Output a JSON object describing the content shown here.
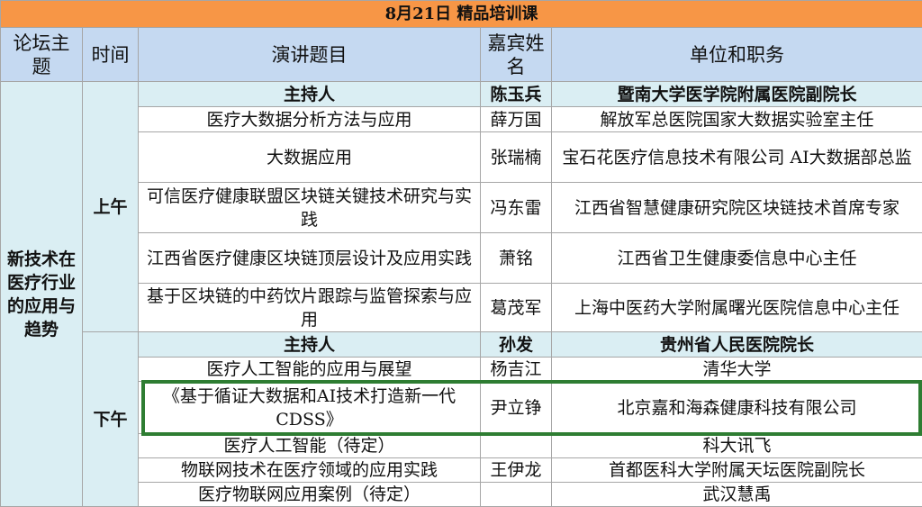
{
  "title": "8月21日  精品培训课",
  "headers": {
    "topic": "论坛主题",
    "time": "时间",
    "talk": "演讲题目",
    "speaker": "嘉宾姓名",
    "org": "单位和职务"
  },
  "topic": "新技术在医疗行业的应用与趋势",
  "morning": {
    "label": "上午",
    "host": {
      "label": "主持人",
      "name": "陈玉兵",
      "org": "暨南大学医学院附属医院副院长"
    },
    "rows": [
      {
        "talk": "医疗大数据分析方法与应用",
        "speaker": "薛万国",
        "org": "解放军总医院国家大数据实验室主任"
      },
      {
        "talk": "大数据应用",
        "speaker": "张瑞楠",
        "org": "宝石花医疗信息技术有限公司 AI大数据部总监"
      },
      {
        "talk": "可信医疗健康联盟区块链关键技术研究与实践",
        "speaker": "冯东雷",
        "org": "江西省智慧健康研究院区块链技术首席专家"
      },
      {
        "talk": "江西省医疗健康区块链顶层设计及应用实践",
        "speaker": "萧铭",
        "org": "江西省卫生健康委信息中心主任"
      },
      {
        "talk": "基于区块链的中药饮片跟踪与监管探索与应用",
        "speaker": "葛茂军",
        "org": "上海中医药大学附属曙光医院信息中心主任"
      }
    ]
  },
  "afternoon": {
    "label": "下午",
    "host": {
      "label": "主持人",
      "name": "孙发",
      "org": "贵州省人民医院院长"
    },
    "rows": [
      {
        "talk": "医疗人工智能的应用与展望",
        "speaker": "杨吉江",
        "org": "清华大学"
      },
      {
        "talk": "《基于循证大数据和AI技术打造新一代CDSS》",
        "speaker": "尹立铮",
        "org": "北京嘉和海森健康科技有限公司"
      },
      {
        "talk": "医疗人工智能（待定）",
        "speaker": "",
        "org": "科大讯飞"
      },
      {
        "talk": "物联网技术在医疗领域的应用实践",
        "speaker": "王伊龙",
        "org": "首都医科大学附属天坛医院副院长"
      },
      {
        "talk": "医疗物联网应用案例（待定）",
        "speaker": "",
        "org": "武汉慧禹"
      }
    ]
  },
  "highlight_color": "#2e7d32"
}
